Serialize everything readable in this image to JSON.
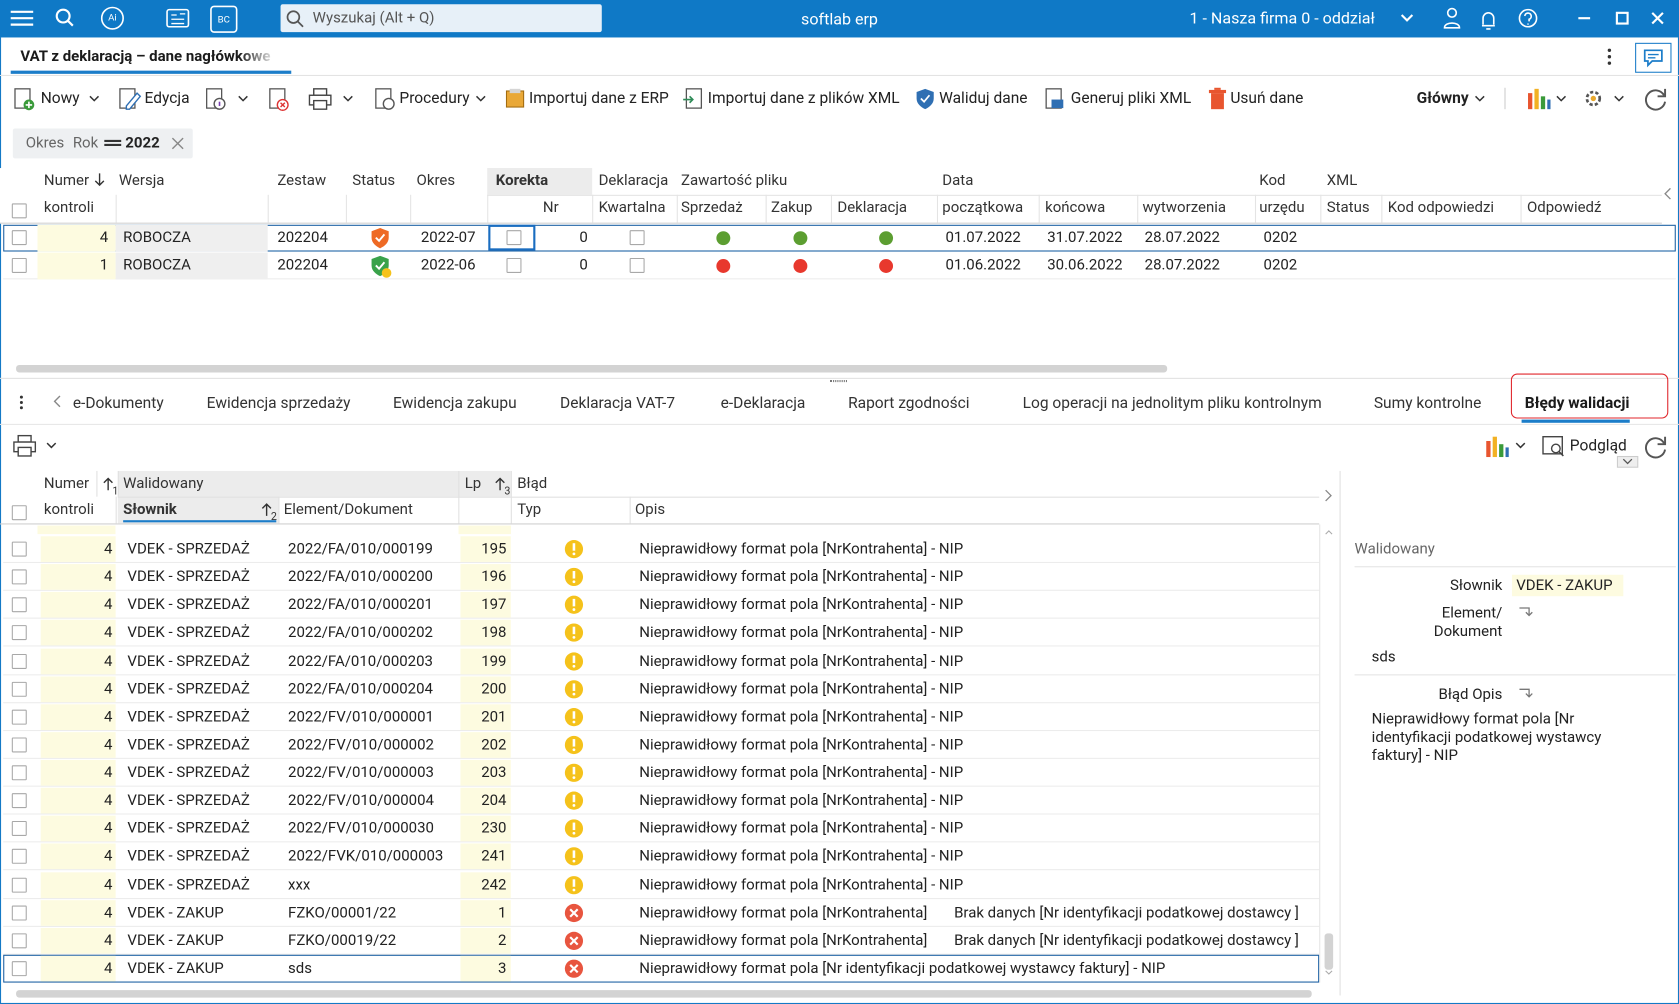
{
  "app": {
    "logo_ai": "Ai",
    "logo_bc": "BC",
    "search_placeholder": "Wyszukaj (Alt + Q)",
    "title": "softlab erp",
    "company": "1 - Nasza firma 0 - oddział"
  },
  "document_tab": "VAT z deklaracją – dane nagłówkowe",
  "toolbar": [
    "Nowy",
    "Edycja",
    "Procedury",
    "Importuj dane z ERP",
    "Importuj dane z plików XML",
    "Waliduj dane",
    "Generuj pliki XML",
    "Usuń dane",
    "Główny"
  ],
  "filter": {
    "field": "Okres",
    "subfield": "Rok",
    "operator": "=",
    "value": "2022"
  },
  "top_grid": {
    "header_row1": [
      "Numer",
      "Wersja",
      "Zestaw",
      "Status",
      "Okres",
      "Korekta",
      "Deklaracja",
      "Zawartość pliku",
      "Data",
      "Kod",
      "XML"
    ],
    "header_row2": [
      "kontroli",
      "Nr",
      "Kwartalna",
      "Sprzedaż",
      "Zakup",
      "Deklaracja",
      "początkowa",
      "końcowa",
      "wytworzenia",
      "urzędu",
      "Status",
      "Kod odpowiedzi",
      "Odpowiedź"
    ],
    "rows": [
      {
        "numer": "4",
        "wersja": "ROBOCZA",
        "zestaw": "202204",
        "status": "warning",
        "okres": "2022-07",
        "korekta_nr": "0",
        "dots": [
          "#5c9e31",
          "#5c9e31",
          "#5c9e31"
        ],
        "data_poczatkowa": "01.07.2022",
        "data_koncowa": "31.07.2022",
        "data_wytworzenia": "28.07.2022",
        "kod_urzedu": "0202"
      },
      {
        "numer": "1",
        "wersja": "ROBOCZA",
        "zestaw": "202204",
        "status": "ok",
        "okres": "2022-06",
        "korekta_nr": "0",
        "dots": [
          "#e8382d",
          "#e8382d",
          "#e8382d"
        ],
        "data_poczatkowa": "01.06.2022",
        "data_koncowa": "30.06.2022",
        "data_wytworzenia": "28.07.2022",
        "kod_urzedu": "0202"
      }
    ]
  },
  "tabs": [
    "e-Dokumenty",
    "Ewidencja sprzedaży",
    "Ewidencja zakupu",
    "Deklaracja VAT-7",
    "e-Deklaracja",
    "Raport zgodności",
    "Log operacji na jednolitym pliku kontrolnym",
    "Sumy kontrolne",
    "Błędy walidacji"
  ],
  "active_tab": 8,
  "bottom_toolbar": {
    "preview": "Podgląd"
  },
  "bottom_grid": {
    "header_row1": [
      "Numer",
      "Walidowany",
      "Lp",
      "Błąd"
    ],
    "header_row2": [
      "kontroli",
      "Słownik",
      "Element/Dokument",
      "Typ",
      "Opis"
    ],
    "sort_labels": [
      "1",
      "2",
      "3"
    ],
    "rows": [
      {
        "numer": "4",
        "slownik": "VDEK - SPRZEDAŻ",
        "element": "2022/FA/010/000199",
        "lp": "195",
        "typ": "warning",
        "opis": "Nieprawidłowy format pola [NrKontrahenta] - NIP"
      },
      {
        "numer": "4",
        "slownik": "VDEK - SPRZEDAŻ",
        "element": "2022/FA/010/000200",
        "lp": "196",
        "typ": "warning",
        "opis": "Nieprawidłowy format pola [NrKontrahenta] - NIP"
      },
      {
        "numer": "4",
        "slownik": "VDEK - SPRZEDAŻ",
        "element": "2022/FA/010/000201",
        "lp": "197",
        "typ": "warning",
        "opis": "Nieprawidłowy format pola [NrKontrahenta] - NIP"
      },
      {
        "numer": "4",
        "slownik": "VDEK - SPRZEDAŻ",
        "element": "2022/FA/010/000202",
        "lp": "198",
        "typ": "warning",
        "opis": "Nieprawidłowy format pola [NrKontrahenta] - NIP"
      },
      {
        "numer": "4",
        "slownik": "VDEK - SPRZEDAŻ",
        "element": "2022/FA/010/000203",
        "lp": "199",
        "typ": "warning",
        "opis": "Nieprawidłowy format pola [NrKontrahenta] - NIP"
      },
      {
        "numer": "4",
        "slownik": "VDEK - SPRZEDAŻ",
        "element": "2022/FA/010/000204",
        "lp": "200",
        "typ": "warning",
        "opis": "Nieprawidłowy format pola [NrKontrahenta] - NIP"
      },
      {
        "numer": "4",
        "slownik": "VDEK - SPRZEDAŻ",
        "element": "2022/FV/010/000001",
        "lp": "201",
        "typ": "warning",
        "opis": "Nieprawidłowy format pola [NrKontrahenta] - NIP"
      },
      {
        "numer": "4",
        "slownik": "VDEK - SPRZEDAŻ",
        "element": "2022/FV/010/000002",
        "lp": "202",
        "typ": "warning",
        "opis": "Nieprawidłowy format pola [NrKontrahenta] - NIP"
      },
      {
        "numer": "4",
        "slownik": "VDEK - SPRZEDAŻ",
        "element": "2022/FV/010/000003",
        "lp": "203",
        "typ": "warning",
        "opis": "Nieprawidłowy format pola [NrKontrahenta] - NIP"
      },
      {
        "numer": "4",
        "slownik": "VDEK - SPRZEDAŻ",
        "element": "2022/FV/010/000004",
        "lp": "204",
        "typ": "warning",
        "opis": "Nieprawidłowy format pola [NrKontrahenta] - NIP"
      },
      {
        "numer": "4",
        "slownik": "VDEK - SPRZEDAŻ",
        "element": "2022/FV/010/000030",
        "lp": "230",
        "typ": "warning",
        "opis": "Nieprawidłowy format pola [NrKontrahenta] - NIP"
      },
      {
        "numer": "4",
        "slownik": "VDEK - SPRZEDAŻ",
        "element": "2022/FVK/010/000003",
        "lp": "241",
        "typ": "warning",
        "opis": "Nieprawidłowy format pola [NrKontrahenta] - NIP"
      },
      {
        "numer": "4",
        "slownik": "VDEK - SPRZEDAŻ",
        "element": "xxx",
        "lp": "242",
        "typ": "warning",
        "opis": "Nieprawidłowy format pola [NrKontrahenta] - NIP"
      },
      {
        "numer": "4",
        "slownik": "VDEK - ZAKUP",
        "element": "FZKO/00001/22",
        "lp": "1",
        "typ": "error",
        "opis": "Nieprawidłowy format pola [NrKontrahenta]",
        "opis2": "Brak danych [Nr identyfikacji podatkowej dostawcy ]"
      },
      {
        "numer": "4",
        "slownik": "VDEK - ZAKUP",
        "element": "FZKO/00019/22",
        "lp": "2",
        "typ": "error",
        "opis": "Nieprawidłowy format pola [NrKontrahenta]",
        "opis2": "Brak danych [Nr identyfikacji podatkowej dostawcy ]"
      },
      {
        "numer": "4",
        "slownik": "VDEK - ZAKUP",
        "element": "sds",
        "lp": "3",
        "typ": "error",
        "opis": "Nieprawidłowy format pola [Nr identyfikacji podatkowej wystawcy faktury] - NIP"
      }
    ]
  },
  "side_panel": {
    "section": "Walidowany",
    "slownik_label": "Słownik",
    "slownik_value": "VDEK - ZAKUP",
    "element_label": "Element/ Dokument",
    "element_value": "sds",
    "blad_label": "Błąd Opis",
    "blad_value": "Nieprawidłowy format pola [Nr identyfikacji podatkowej wystawcy faktury] - NIP"
  }
}
